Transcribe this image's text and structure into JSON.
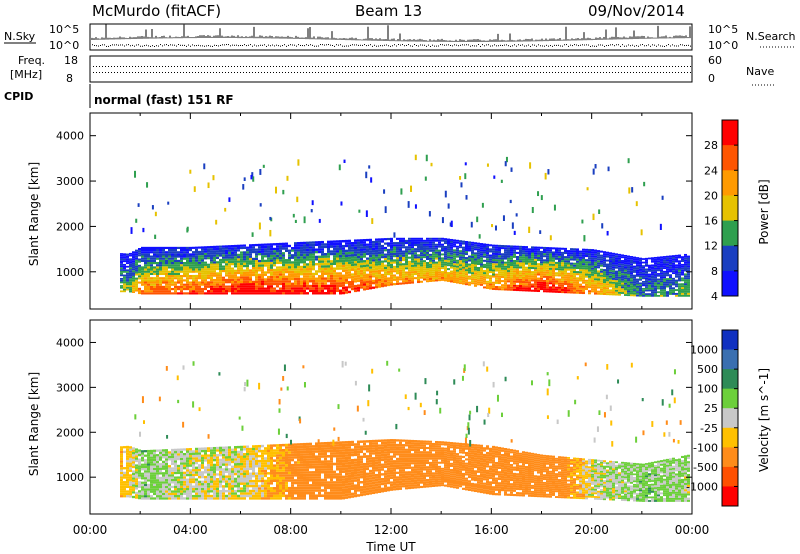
{
  "header": {
    "station": "McMurdo (fitACF)",
    "beam": "Beam 13",
    "date": "09/Nov/2014"
  },
  "summary_panel": {
    "nsky_label": "N.Sky",
    "nsearch_label": "N.Search",
    "freq_label_1": "Freq.",
    "freq_label_2": "[MHz]",
    "nave_label": "Nave",
    "cpid_label": "CPID",
    "cpid_value": "normal (fast) 151 RF",
    "noise_left_top": "10^5",
    "noise_left_bottom": "10^0",
    "noise_right_top": "10^5",
    "noise_right_bottom": "10^0",
    "freq_ticks": [
      "18",
      "8"
    ],
    "nave_ticks": [
      "60",
      "0"
    ]
  },
  "colorbar_power": {
    "label": "Power [dB]",
    "ticks": [
      "28",
      "24",
      "20",
      "16",
      "12",
      "8",
      "4"
    ],
    "colors": [
      "#ff0000",
      "#ff5500",
      "#ff9a00",
      "#e6c200",
      "#2f9f4f",
      "#1a3fc0",
      "#1010ff"
    ]
  },
  "colorbar_velocity": {
    "label": "Velocity [m s^-1]",
    "ticks": [
      "1000",
      "500",
      "100",
      "25",
      "-25",
      "-100",
      "-500",
      "-1000"
    ],
    "colors": [
      "#1030c0",
      "#3a6fb0",
      "#2e8b57",
      "#6ccf3a",
      "#c8c8c8",
      "#ffc000",
      "#ff8c1a",
      "#ff5000",
      "#ff0000"
    ]
  },
  "chart_data": [
    {
      "type": "heatmap",
      "panel": "power",
      "ylabel": "Slant Range [km]",
      "xlabel": "",
      "ylim": [
        180,
        4500
      ],
      "xlim": [
        0,
        24
      ],
      "yticks": [
        1000,
        2000,
        3000,
        4000
      ],
      "xticks": [
        0,
        2,
        4,
        6,
        8,
        10,
        12,
        14,
        16,
        18,
        20,
        22,
        24
      ],
      "x_tick_labels": [
        "00:00",
        "04:00",
        "08:00",
        "12:00",
        "16:00",
        "20:00",
        "00:00"
      ],
      "backscatter_envelope": {
        "time_ut": [
          0.2,
          1.5,
          2.0,
          4.0,
          6.0,
          8.0,
          10.0,
          12.0,
          14.0,
          16.0,
          18.0,
          20.0,
          22.0,
          23.8
        ],
        "lower_km": [
          550,
          550,
          500,
          500,
          500,
          500,
          500,
          700,
          800,
          600,
          550,
          500,
          450,
          450
        ],
        "upper_km": [
          1450,
          1400,
          1550,
          1550,
          1600,
          1650,
          1700,
          1750,
          1750,
          1600,
          1550,
          1500,
          1300,
          1400
        ],
        "peak_power_db": [
          16,
          14,
          24,
          26,
          30,
          28,
          28,
          22,
          20,
          22,
          30,
          22,
          10,
          14
        ]
      }
    },
    {
      "type": "heatmap",
      "panel": "velocity",
      "ylabel": "Slant Range [km]",
      "xlabel": "Time UT",
      "ylim": [
        180,
        4500
      ],
      "xlim": [
        0,
        24
      ],
      "yticks": [
        1000,
        2000,
        3000,
        4000
      ],
      "xticks": [
        0,
        2,
        4,
        6,
        8,
        10,
        12,
        14,
        16,
        18,
        20,
        22,
        24
      ],
      "x_tick_labels": [
        "00:00",
        "04:00",
        "08:00",
        "12:00",
        "16:00",
        "20:00",
        "00:00"
      ],
      "backscatter_envelope": {
        "time_ut": [
          0.2,
          1.5,
          2.0,
          4.0,
          6.0,
          8.0,
          10.0,
          12.0,
          14.0,
          16.0,
          18.0,
          20.0,
          22.0,
          23.8
        ],
        "lower_km": [
          550,
          550,
          500,
          500,
          500,
          500,
          500,
          700,
          800,
          600,
          550,
          500,
          450,
          450
        ],
        "upper_km": [
          1650,
          1700,
          1600,
          1650,
          1700,
          1750,
          1800,
          1850,
          1800,
          1700,
          1500,
          1400,
          1300,
          1500
        ],
        "velocity_ms": [
          -150,
          -50,
          60,
          -10,
          0,
          -150,
          -200,
          -200,
          -200,
          -200,
          -300,
          0,
          50,
          30
        ]
      }
    }
  ]
}
